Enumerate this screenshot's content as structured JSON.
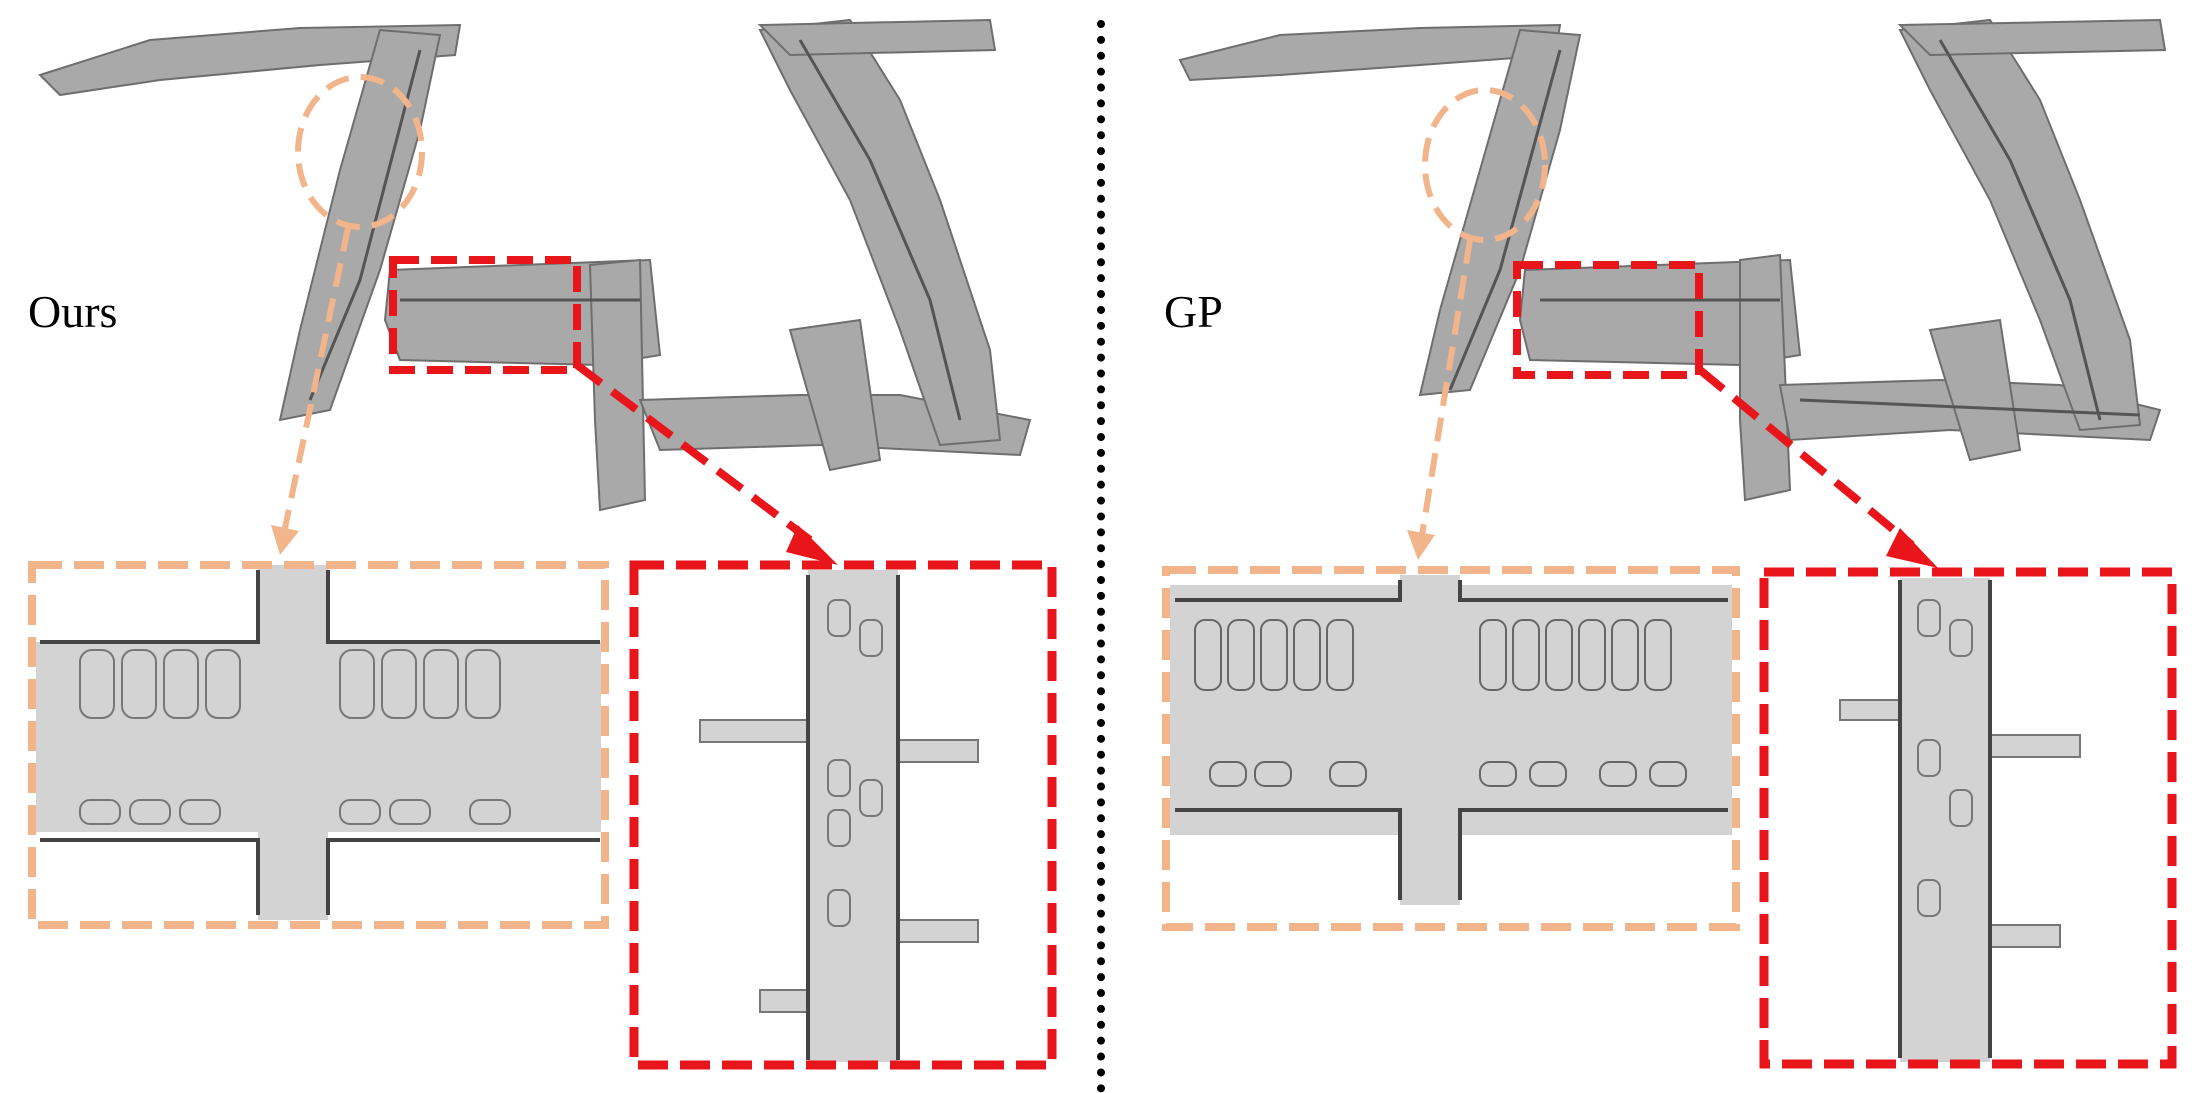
{
  "figure": {
    "left_panel": {
      "method_label": "Ours"
    },
    "right_panel": {
      "method_label": "GP"
    }
  },
  "colors": {
    "circle_highlight": "#F2B48A",
    "box_highlight": "#E8161B",
    "mesh_fill": "#A9A9A9",
    "mesh_dark": "#6E6E6E",
    "zoom_fill": "#D3D3D3",
    "background": "#FFFFFF",
    "divider": "#000000"
  }
}
